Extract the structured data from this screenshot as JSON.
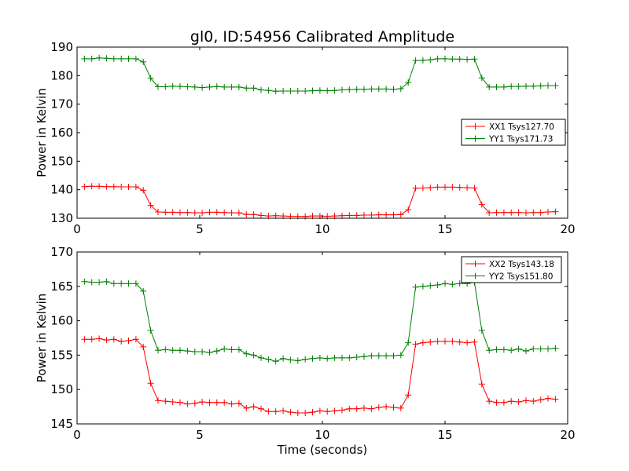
{
  "figure_title": "gl0, ID:54956 Calibrated Amplitude",
  "chart_data": [
    {
      "type": "line",
      "title": "gl0, ID:54956 Calibrated Amplitude",
      "xlabel": "",
      "ylabel": "Power in Kelvin",
      "xlim": [
        0,
        20
      ],
      "ylim": [
        130,
        190
      ],
      "xticks": [
        0,
        5,
        10,
        15,
        20
      ],
      "yticks": [
        130,
        140,
        150,
        160,
        170,
        180,
        190
      ],
      "grid": false,
      "legend_position": "center-right",
      "x": [
        0.3,
        0.6,
        0.9,
        1.2,
        1.5,
        1.8,
        2.1,
        2.4,
        2.7,
        3.0,
        3.3,
        3.6,
        3.9,
        4.2,
        4.5,
        4.8,
        5.1,
        5.4,
        5.7,
        6.0,
        6.3,
        6.6,
        6.9,
        7.2,
        7.5,
        7.8,
        8.1,
        8.4,
        8.7,
        9.0,
        9.3,
        9.6,
        9.9,
        10.2,
        10.5,
        10.8,
        11.1,
        11.4,
        11.7,
        12.0,
        12.3,
        12.6,
        12.9,
        13.2,
        13.5,
        13.8,
        14.1,
        14.4,
        14.7,
        15.0,
        15.3,
        15.6,
        15.9,
        16.2,
        16.5,
        16.8,
        17.1,
        17.4,
        17.7,
        18.0,
        18.3,
        18.6,
        18.9,
        19.2,
        19.5
      ],
      "series": [
        {
          "name": "XX1 Tsys127.70",
          "color": "#ff0000",
          "values": [
            141.1,
            141.2,
            141.2,
            141.1,
            141.1,
            141.0,
            141.0,
            141.0,
            139.8,
            134.5,
            132.2,
            132.1,
            132.1,
            132.0,
            132.0,
            131.9,
            131.9,
            132.1,
            132.1,
            132.0,
            131.9,
            131.9,
            131.3,
            131.3,
            131.0,
            130.8,
            130.9,
            130.8,
            130.7,
            130.7,
            130.6,
            130.8,
            130.8,
            130.7,
            130.8,
            130.9,
            131.0,
            131.0,
            131.1,
            131.1,
            131.2,
            131.2,
            131.2,
            131.3,
            133.0,
            140.5,
            140.6,
            140.7,
            140.9,
            140.9,
            140.9,
            140.8,
            140.7,
            140.6,
            134.8,
            131.9,
            132.0,
            132.0,
            132.0,
            132.0,
            131.9,
            132.0,
            132.0,
            132.2,
            132.3
          ]
        },
        {
          "name": "YY1 Tsys171.73",
          "color": "#008000",
          "values": [
            185.9,
            185.9,
            186.2,
            186.1,
            185.9,
            185.9,
            185.9,
            185.9,
            184.8,
            179.1,
            176.1,
            176.1,
            176.3,
            176.2,
            176.1,
            176.0,
            175.8,
            176.0,
            176.2,
            176.0,
            176.0,
            176.0,
            175.6,
            175.6,
            175.0,
            174.8,
            174.5,
            174.6,
            174.6,
            174.6,
            174.6,
            174.7,
            174.8,
            174.7,
            174.8,
            175.0,
            175.1,
            175.2,
            175.2,
            175.3,
            175.3,
            175.3,
            175.2,
            175.4,
            177.6,
            185.3,
            185.4,
            185.5,
            185.9,
            185.9,
            185.8,
            185.8,
            185.7,
            185.8,
            179.2,
            176.0,
            176.0,
            176.0,
            176.2,
            176.2,
            176.3,
            176.3,
            176.4,
            176.5,
            176.5
          ]
        }
      ]
    },
    {
      "type": "line",
      "title": "",
      "xlabel": "Time (seconds)",
      "ylabel": "Power in Kelvin",
      "xlim": [
        0,
        20
      ],
      "ylim": [
        145,
        170
      ],
      "xticks": [
        0,
        5,
        10,
        15,
        20
      ],
      "yticks": [
        145,
        150,
        155,
        160,
        165,
        170
      ],
      "grid": false,
      "legend_position": "top-right",
      "x": [
        0.3,
        0.6,
        0.9,
        1.2,
        1.5,
        1.8,
        2.1,
        2.4,
        2.7,
        3.0,
        3.3,
        3.6,
        3.9,
        4.2,
        4.5,
        4.8,
        5.1,
        5.4,
        5.7,
        6.0,
        6.3,
        6.6,
        6.9,
        7.2,
        7.5,
        7.8,
        8.1,
        8.4,
        8.7,
        9.0,
        9.3,
        9.6,
        9.9,
        10.2,
        10.5,
        10.8,
        11.1,
        11.4,
        11.7,
        12.0,
        12.3,
        12.6,
        12.9,
        13.2,
        13.5,
        13.8,
        14.1,
        14.4,
        14.7,
        15.0,
        15.3,
        15.6,
        15.9,
        16.2,
        16.5,
        16.8,
        17.1,
        17.4,
        17.7,
        18.0,
        18.3,
        18.6,
        18.9,
        19.2,
        19.5
      ],
      "series": [
        {
          "name": "XX2 Tsys143.18",
          "color": "#ff0000",
          "values": [
            157.3,
            157.3,
            157.4,
            157.2,
            157.3,
            157.0,
            157.1,
            157.3,
            156.2,
            150.9,
            148.4,
            148.3,
            148.2,
            148.1,
            147.9,
            148.0,
            148.2,
            148.1,
            148.1,
            148.1,
            147.9,
            148.0,
            147.3,
            147.5,
            147.2,
            146.8,
            146.8,
            146.9,
            146.7,
            146.6,
            146.6,
            146.7,
            146.9,
            146.8,
            146.9,
            147.0,
            147.2,
            147.2,
            147.3,
            147.2,
            147.4,
            147.5,
            147.4,
            147.3,
            149.2,
            156.6,
            156.8,
            156.9,
            157.0,
            157.0,
            157.0,
            156.9,
            156.8,
            156.9,
            150.8,
            148.3,
            148.1,
            148.1,
            148.3,
            148.2,
            148.4,
            148.3,
            148.5,
            148.7,
            148.6
          ]
        },
        {
          "name": "YY2 Tsys151.80",
          "color": "#008000",
          "values": [
            165.7,
            165.6,
            165.6,
            165.7,
            165.4,
            165.4,
            165.4,
            165.4,
            164.3,
            158.6,
            155.7,
            155.8,
            155.7,
            155.7,
            155.6,
            155.5,
            155.5,
            155.4,
            155.6,
            155.9,
            155.8,
            155.8,
            155.2,
            155.0,
            154.6,
            154.4,
            154.1,
            154.5,
            154.3,
            154.2,
            154.4,
            154.5,
            154.6,
            154.5,
            154.6,
            154.6,
            154.6,
            154.7,
            154.8,
            154.9,
            154.9,
            154.9,
            154.9,
            155.0,
            156.8,
            164.9,
            165.0,
            165.1,
            165.2,
            165.4,
            165.3,
            165.4,
            165.4,
            165.6,
            158.6,
            155.7,
            155.8,
            155.8,
            155.7,
            155.9,
            155.6,
            155.9,
            155.9,
            155.9,
            156.0
          ]
        }
      ]
    }
  ]
}
